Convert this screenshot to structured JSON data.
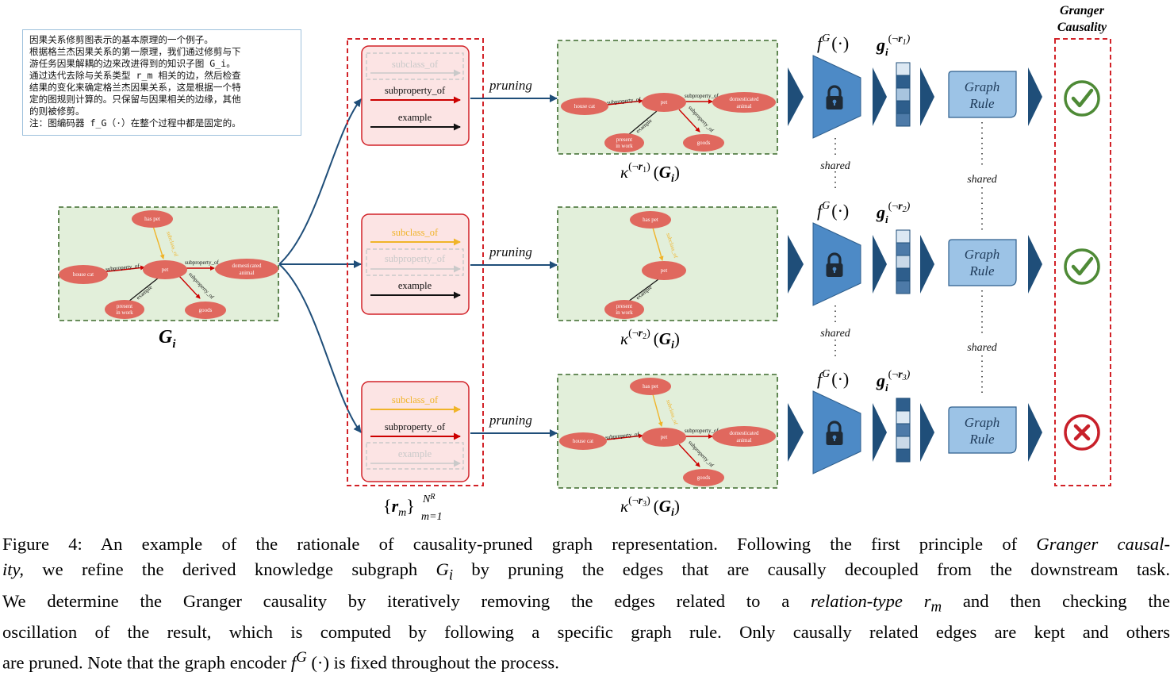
{
  "note": {
    "lines": [
      "因果关系修剪图表示的基本原理的一个例子。",
      "根据格兰杰因果关系的第一原理，我们通过修剪与下",
      "游任务因果解耦的边来改进得到的知识子图 G_i。",
      "通过迭代去除与关系类型 r_m 相关的边，然后检查",
      "结果的变化来确定格兰杰因果关系，这是根据一个特",
      "定的图规则计算的。只保留与因果相关的边缘，其他",
      "的则被修剪。",
      "注：图编码器 f_G（·）在整个过程中都是固定的。"
    ]
  },
  "graph_labels": {
    "has_pet": "has pet",
    "house_cat": "house cat",
    "pet": "pet",
    "domesticated_1": "domesticated",
    "domesticated_2": "animal",
    "present_1": "present",
    "present_2": "in work",
    "goods": "goods",
    "subclass_of": "subclass_of",
    "subproperty_of": "subproperty_of",
    "example": "example"
  },
  "input_graph": {
    "label_main": "G",
    "label_sub": "i"
  },
  "relation_labels": {
    "subclass_of": "subclass_of",
    "subproperty_of": "subproperty_of",
    "example": "example"
  },
  "relation_set": {
    "left": "{",
    "r": "r",
    "m": "m",
    "right": "}",
    "superscript": "N",
    "superscript_r": "R",
    "subscript": "m=1"
  },
  "pruning_label": "pruning",
  "rows": [
    {
      "kappa": "κ",
      "neg": "(¬",
      "r": "r",
      "idx": "1",
      "close": ")",
      "G": "G",
      "Gsub": "i",
      "outcome": "check"
    },
    {
      "kappa": "κ",
      "neg": "(¬",
      "r": "r",
      "idx": "2",
      "close": ")",
      "G": "G",
      "Gsub": "i",
      "outcome": "check"
    },
    {
      "kappa": "κ",
      "neg": "(¬",
      "r": "r",
      "idx": "3",
      "close": ")",
      "G": "G",
      "Gsub": "i",
      "outcome": "cross"
    }
  ],
  "encoder_label": {
    "f": "f",
    "sup": "G",
    "args": "(·)"
  },
  "embedding_label": {
    "g": "g",
    "sub": "i"
  },
  "shared_label": "shared",
  "graph_rule": {
    "line1": "Graph",
    "line2": "Rule"
  },
  "granger_title": {
    "line1": "Granger",
    "line2": "Causality"
  },
  "colors": {
    "node": "#e0685e",
    "graph_bg": "#e2efda",
    "green_dash": "#3c6a2c",
    "red_dash": "#d22228",
    "encoder": "#4d8ac6",
    "rule_box": "#9cc3e6",
    "arrow_blue": "#1f4e79",
    "check": "#4e8a36",
    "cross": "#c8202a",
    "subclass": "#f0b429",
    "subproperty": "#cc0000"
  },
  "caption": {
    "line1_a": "Figure 4: An example of the rationale of causality-pruned graph representation. Following the first principle of ",
    "line1_b": "Granger causal-",
    "line2_a": "ity,",
    "line2_b": " we refine the derived knowledge subgraph ",
    "line2_c": "G",
    "line2_d": "i",
    "line2_e": " by pruning the edges that are causally decoupled from the downstream task.",
    "line3_a": "We determine the Granger causality by iteratively removing the edges related to a ",
    "line3_b": "relation-type r",
    "line3_c": "m",
    "line3_d": " and then checking the",
    "line4": "oscillation of the result, which is computed by following a specific graph rule. Only causally related edges are kept and others",
    "line5_a": "are pruned. Note that the graph encoder ",
    "line5_b": "f",
    "line5_c": "G",
    "line5_d": " (·) is fixed throughout the process."
  }
}
